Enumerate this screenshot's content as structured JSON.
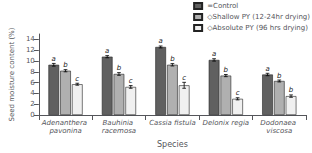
{
  "chart_data": {
    "type": "bar",
    "categories": [
      "Adenanthera pavonina",
      "Bauhinia racemosa",
      "Cassia fistula",
      "Delonix regia",
      "Dodonaea viscosa"
    ],
    "series": [
      {
        "name": "=Control",
        "color": "#606060",
        "values": [
          9.3,
          10.8,
          12.6,
          10.2,
          7.5
        ],
        "errors": [
          0.25,
          0.2,
          0.18,
          0.22,
          0.22
        ],
        "letters": [
          "a",
          "a",
          "a",
          "a",
          "a"
        ]
      },
      {
        "name": "◇Shallow PY (12-24hr drying)",
        "color": "#b0b0b0",
        "values": [
          8.2,
          7.6,
          9.3,
          7.3,
          6.3
        ],
        "errors": [
          0.2,
          0.25,
          0.22,
          0.2,
          0.18
        ],
        "letters": [
          "b",
          "b",
          "b",
          "b",
          "b"
        ]
      },
      {
        "name": "◇Absolute PY (96 hrs drying)",
        "color": "#f0f0f0",
        "values": [
          5.7,
          5.2,
          5.5,
          3.0,
          3.5
        ],
        "errors": [
          0.18,
          0.25,
          0.55,
          0.2,
          0.22
        ],
        "letters": [
          "c",
          "c",
          "c",
          "c",
          "b"
        ]
      }
    ],
    "xlabel": "Species",
    "ylabel": "Seed moisture content (%)",
    "ylim": [
      0,
      15
    ],
    "yticks": [
      0,
      2,
      4,
      6,
      8,
      10,
      12,
      14
    ],
    "grid": false,
    "legend": "upper right"
  }
}
